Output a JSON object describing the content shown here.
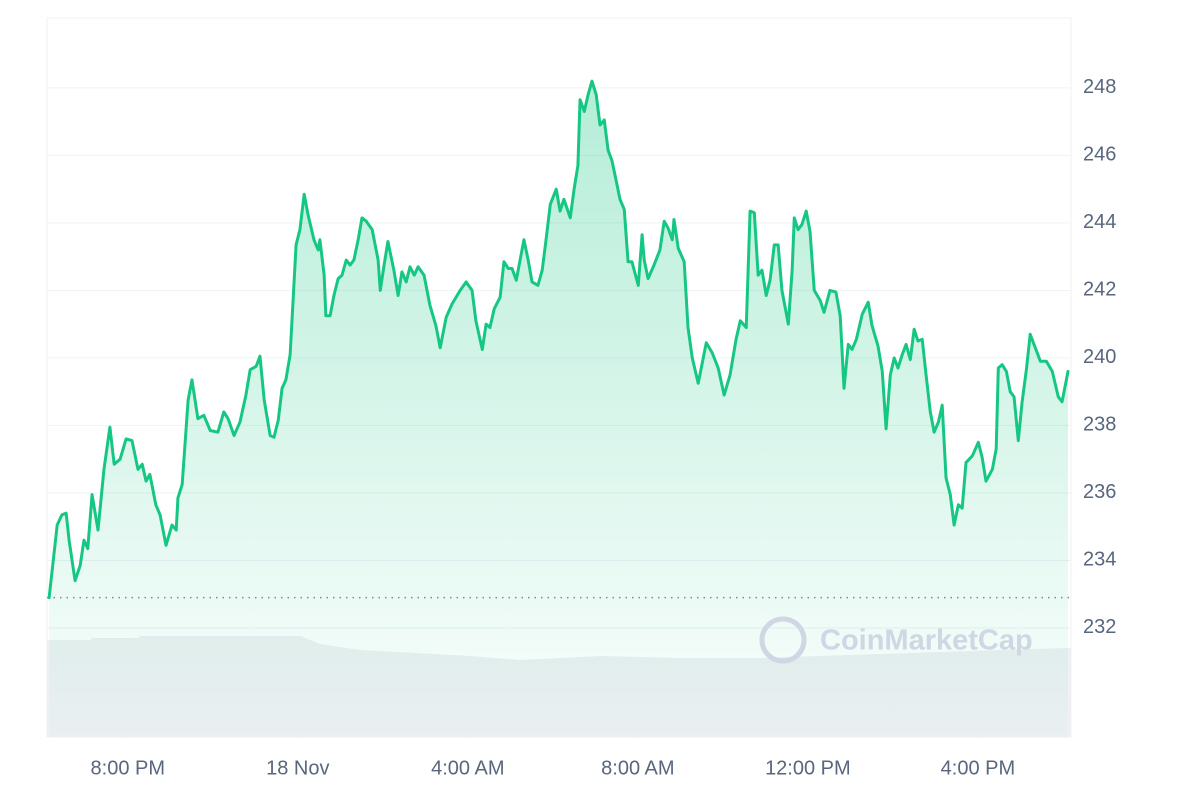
{
  "chart_data": {
    "type": "area",
    "watermark": "CoinMarketCap",
    "color": "#16c784",
    "grid": true,
    "reference_line": 232.9,
    "xlim": [
      -5.9,
      18.19
    ],
    "xticks": [
      {
        "value": -4,
        "label": "8:00 PM"
      },
      {
        "value": 0,
        "label": "18 Nov"
      },
      {
        "value": 4,
        "label": "4:00 AM"
      },
      {
        "value": 8,
        "label": "8:00 AM"
      },
      {
        "value": 12,
        "label": "12:00 PM"
      },
      {
        "value": 16,
        "label": "4:00 PM"
      }
    ],
    "ylim": [
      228.77,
      250.07
    ],
    "yticks": [
      232,
      234,
      236,
      238,
      240,
      242,
      244,
      246,
      248
    ],
    "x": [
      -5.85,
      -5.66,
      -5.55,
      -5.45,
      -5.38,
      -5.24,
      -5.12,
      -5.03,
      -4.94,
      -4.84,
      -4.7,
      -4.56,
      -4.42,
      -4.32,
      -4.18,
      -4.04,
      -3.9,
      -3.76,
      -3.66,
      -3.57,
      -3.48,
      -3.34,
      -3.24,
      -3.1,
      -2.96,
      -2.86,
      -2.82,
      -2.72,
      -2.58,
      -2.49,
      -2.35,
      -2.21,
      -2.06,
      -1.88,
      -1.74,
      -1.64,
      -1.5,
      -1.36,
      -1.22,
      -1.12,
      -0.98,
      -0.89,
      -0.79,
      -0.65,
      -0.56,
      -0.46,
      -0.37,
      -0.28,
      -0.18,
      -0.04,
      0.05,
      0.15,
      0.24,
      0.38,
      0.48,
      0.52,
      0.62,
      0.66,
      0.76,
      0.85,
      0.95,
      1.04,
      1.14,
      1.23,
      1.32,
      1.42,
      1.51,
      1.61,
      1.75,
      1.89,
      1.94,
      2.03,
      2.12,
      2.26,
      2.36,
      2.45,
      2.55,
      2.64,
      2.74,
      2.83,
      2.97,
      3.11,
      3.25,
      3.35,
      3.49,
      3.63,
      3.82,
      3.96,
      4.1,
      4.19,
      4.34,
      4.43,
      4.52,
      4.62,
      4.76,
      4.85,
      4.95,
      5.04,
      5.14,
      5.23,
      5.32,
      5.42,
      5.51,
      5.65,
      5.75,
      5.84,
      5.94,
      6.08,
      6.17,
      6.26,
      6.41,
      6.5,
      6.59,
      6.64,
      6.74,
      6.83,
      6.92,
      7.02,
      7.11,
      7.21,
      7.3,
      7.39,
      7.49,
      7.58,
      7.68,
      7.77,
      7.86,
      8.01,
      8.1,
      8.15,
      8.24,
      8.38,
      8.52,
      8.62,
      8.71,
      8.81,
      8.85,
      8.95,
      9.09,
      9.18,
      9.28,
      9.42,
      9.61,
      9.75,
      9.89,
      10.03,
      10.17,
      10.31,
      10.41,
      10.55,
      10.64,
      10.74,
      10.83,
      10.92,
      11.02,
      11.11,
      11.21,
      11.3,
      11.39,
      11.54,
      11.63,
      11.68,
      11.77,
      11.86,
      11.96,
      12.05,
      12.15,
      12.29,
      12.38,
      12.52,
      12.66,
      12.76,
      12.85,
      12.95,
      13.04,
      13.14,
      13.28,
      13.42,
      13.51,
      13.65,
      13.75,
      13.84,
      13.94,
      14.03,
      14.12,
      14.22,
      14.31,
      14.41,
      14.5,
      14.59,
      14.69,
      14.78,
      14.88,
      14.97,
      15.07,
      15.16,
      15.25,
      15.35,
      15.44,
      15.54,
      15.63,
      15.72,
      15.87,
      16.01,
      16.1,
      16.19,
      16.34,
      16.43,
      16.48,
      16.57,
      16.67,
      16.76,
      16.85,
      16.95,
      17.04,
      17.14,
      17.23,
      17.32,
      17.47,
      17.61,
      17.75,
      17.89,
      17.98,
      18.12
    ],
    "values": [
      232.9,
      235.05,
      235.35,
      235.4,
      234.6,
      233.4,
      233.85,
      234.6,
      234.35,
      235.95,
      234.9,
      236.7,
      237.95,
      236.85,
      237.0,
      237.6,
      237.55,
      236.7,
      236.85,
      236.35,
      236.55,
      235.65,
      235.35,
      234.45,
      235.05,
      234.9,
      235.85,
      236.25,
      238.75,
      239.35,
      238.2,
      238.3,
      237.85,
      237.8,
      238.4,
      238.2,
      237.7,
      238.1,
      238.9,
      239.65,
      239.75,
      240.05,
      238.75,
      237.7,
      237.65,
      238.15,
      239.1,
      239.35,
      240.1,
      243.35,
      243.8,
      244.85,
      244.25,
      243.5,
      243.2,
      243.5,
      242.45,
      241.25,
      241.25,
      241.85,
      242.35,
      242.45,
      242.9,
      242.75,
      242.9,
      243.5,
      244.15,
      244.05,
      243.8,
      242.9,
      242.0,
      242.75,
      243.45,
      242.6,
      241.85,
      242.55,
      242.25,
      242.7,
      242.45,
      242.7,
      242.45,
      241.55,
      240.95,
      240.3,
      241.2,
      241.6,
      242.0,
      242.25,
      242.0,
      241.1,
      240.25,
      241.0,
      240.9,
      241.45,
      241.8,
      242.85,
      242.65,
      242.65,
      242.3,
      242.9,
      243.5,
      242.9,
      242.25,
      242.15,
      242.6,
      243.5,
      244.55,
      245.0,
      244.35,
      244.7,
      244.15,
      245.0,
      245.7,
      247.65,
      247.3,
      247.8,
      248.2,
      247.8,
      246.9,
      247.05,
      246.15,
      245.85,
      245.25,
      244.7,
      244.4,
      242.85,
      242.85,
      242.15,
      243.65,
      242.9,
      242.35,
      242.75,
      243.2,
      244.05,
      243.85,
      243.5,
      244.1,
      243.25,
      242.85,
      240.9,
      240.0,
      239.25,
      240.45,
      240.15,
      239.7,
      238.9,
      239.5,
      240.55,
      241.1,
      240.9,
      244.35,
      244.3,
      242.45,
      242.6,
      241.85,
      242.3,
      243.35,
      243.35,
      242.0,
      241.0,
      242.6,
      244.15,
      243.8,
      243.95,
      244.35,
      243.75,
      242.0,
      241.7,
      241.35,
      242.0,
      241.95,
      241.25,
      239.1,
      240.4,
      240.25,
      240.55,
      241.3,
      241.65,
      240.95,
      240.35,
      239.6,
      237.9,
      239.5,
      240.0,
      239.7,
      240.1,
      240.4,
      239.95,
      240.85,
      240.5,
      240.55,
      239.5,
      238.4,
      237.8,
      238.1,
      238.6,
      236.45,
      235.95,
      235.05,
      235.65,
      235.55,
      236.9,
      237.1,
      237.5,
      237.05,
      236.35,
      236.7,
      237.3,
      239.7,
      239.8,
      239.6,
      239.0,
      238.85,
      237.55,
      238.7,
      239.65,
      240.7,
      240.4,
      239.9,
      239.9,
      239.6,
      238.85,
      238.7,
      239.6
    ]
  }
}
